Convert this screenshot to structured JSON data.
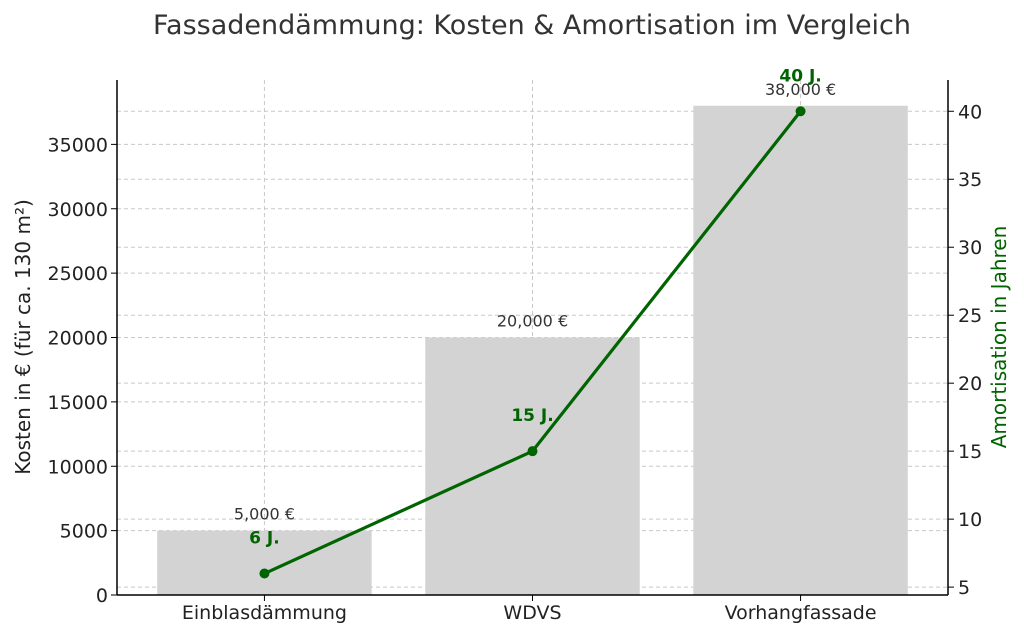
{
  "chart_data": {
    "type": "bar",
    "title": "Fassadendämmung: Kosten & Amortisation im Vergleich",
    "categories": [
      "Einblasdämmung",
      "WDVS",
      "Vorhangfassade"
    ],
    "ylabel": "Kosten in € (für ca. 130 m²)",
    "y2label": "Amortisation in Jahren",
    "ylim": [
      0,
      40000
    ],
    "y2lim": [
      4.42,
      42.3
    ],
    "yticks": [
      "0",
      "5000",
      "10000",
      "15000",
      "20000",
      "25000",
      "30000",
      "35000"
    ],
    "y2ticks": [
      "5",
      "10",
      "15",
      "20",
      "25",
      "30",
      "35",
      "40"
    ],
    "grid": true,
    "series": [
      {
        "kind": "bar",
        "axis": "left",
        "values": [
          5000,
          20000,
          38000
        ],
        "labels": [
          "5,000 €",
          "20,000 €",
          "38,000 €"
        ],
        "color": "#d3d3d3"
      },
      {
        "kind": "line",
        "axis": "right",
        "values": [
          6,
          15,
          40
        ],
        "labels": [
          "6 J.",
          "15 J.",
          "40 J."
        ],
        "color": "#006400"
      }
    ]
  }
}
